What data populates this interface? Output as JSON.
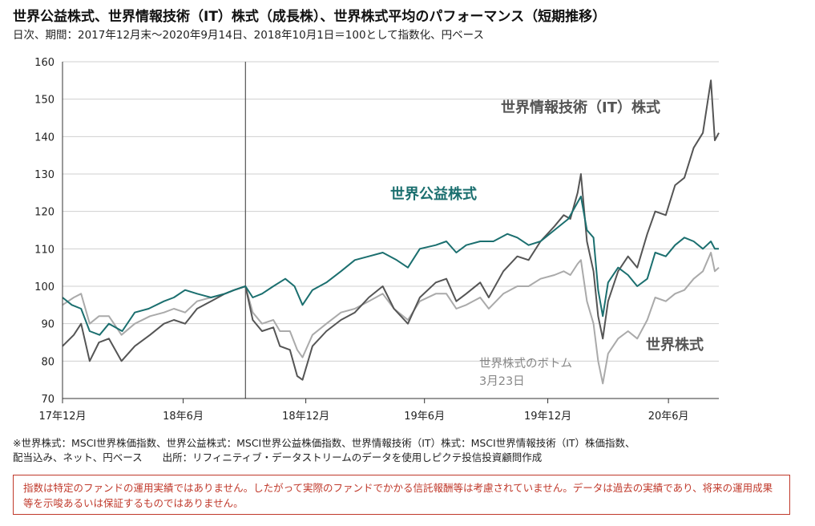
{
  "title": "世界公益株式、世界情報技術（IT）株式（成長株）、世界株式平均のパフォーマンス（短期推移）",
  "subtitle": "日次、期間：2017年12月末～2020年9月14日、2018年10月1日＝100として指数化、円ベース",
  "chart_data": {
    "type": "line",
    "ylim": [
      70,
      160
    ],
    "y_ticks": [
      "70",
      "80",
      "90",
      "100",
      "110",
      "120",
      "130",
      "140",
      "150",
      "160"
    ],
    "x_ticks": [
      "17年12月",
      "18年6月",
      "18年12月",
      "19年6月",
      "19年12月",
      "20年6月"
    ],
    "x_tick_dates": [
      "2017-12-29",
      "2018-06-29",
      "2018-12-31",
      "2019-06-28",
      "2019-12-31",
      "2020-06-30"
    ],
    "x_range": [
      "2017-12-29",
      "2020-09-14"
    ],
    "reference_line": "2018-10-01",
    "series": [
      {
        "name": "世界情報技術（IT）株式",
        "color": "#555555",
        "points": [
          [
            "2017-12-29",
            84
          ],
          [
            "2018-01-15",
            87
          ],
          [
            "2018-01-26",
            90
          ],
          [
            "2018-02-08",
            80
          ],
          [
            "2018-02-22",
            85
          ],
          [
            "2018-03-09",
            86
          ],
          [
            "2018-03-28",
            80
          ],
          [
            "2018-04-17",
            84
          ],
          [
            "2018-05-10",
            87
          ],
          [
            "2018-05-31",
            90
          ],
          [
            "2018-06-15",
            91
          ],
          [
            "2018-07-02",
            90
          ],
          [
            "2018-07-20",
            94
          ],
          [
            "2018-08-10",
            96
          ],
          [
            "2018-08-31",
            98
          ],
          [
            "2018-09-14",
            99
          ],
          [
            "2018-10-01",
            100
          ],
          [
            "2018-10-12",
            91
          ],
          [
            "2018-10-26",
            88
          ],
          [
            "2018-11-12",
            89
          ],
          [
            "2018-11-22",
            84
          ],
          [
            "2018-12-07",
            83
          ],
          [
            "2018-12-18",
            76
          ],
          [
            "2018-12-26",
            75
          ],
          [
            "2019-01-10",
            84
          ],
          [
            "2019-01-31",
            88
          ],
          [
            "2019-02-22",
            91
          ],
          [
            "2019-03-15",
            93
          ],
          [
            "2019-04-05",
            97
          ],
          [
            "2019-04-26",
            100
          ],
          [
            "2019-05-13",
            94
          ],
          [
            "2019-06-03",
            90
          ],
          [
            "2019-06-21",
            97
          ],
          [
            "2019-07-15",
            101
          ],
          [
            "2019-07-31",
            102
          ],
          [
            "2019-08-15",
            96
          ],
          [
            "2019-08-30",
            98
          ],
          [
            "2019-09-20",
            101
          ],
          [
            "2019-10-03",
            97
          ],
          [
            "2019-10-25",
            104
          ],
          [
            "2019-11-15",
            108
          ],
          [
            "2019-12-02",
            107
          ],
          [
            "2019-12-20",
            112
          ],
          [
            "2020-01-10",
            116
          ],
          [
            "2020-01-24",
            119
          ],
          [
            "2020-02-03",
            118
          ],
          [
            "2020-02-14",
            125
          ],
          [
            "2020-02-19",
            130
          ],
          [
            "2020-02-28",
            112
          ],
          [
            "2020-03-09",
            104
          ],
          [
            "2020-03-16",
            92
          ],
          [
            "2020-03-23",
            86
          ],
          [
            "2020-03-31",
            96
          ],
          [
            "2020-04-15",
            104
          ],
          [
            "2020-04-30",
            108
          ],
          [
            "2020-05-14",
            105
          ],
          [
            "2020-05-29",
            114
          ],
          [
            "2020-06-10",
            120
          ],
          [
            "2020-06-26",
            119
          ],
          [
            "2020-07-10",
            127
          ],
          [
            "2020-07-24",
            129
          ],
          [
            "2020-08-07",
            137
          ],
          [
            "2020-08-21",
            141
          ],
          [
            "2020-09-02",
            155
          ],
          [
            "2020-09-08",
            139
          ],
          [
            "2020-09-14",
            141
          ]
        ]
      },
      {
        "name": "世界公益株式",
        "color": "#1b6f6f",
        "points": [
          [
            "2017-12-29",
            97
          ],
          [
            "2018-01-12",
            95
          ],
          [
            "2018-01-26",
            94
          ],
          [
            "2018-02-08",
            88
          ],
          [
            "2018-02-23",
            87
          ],
          [
            "2018-03-09",
            90
          ],
          [
            "2018-03-29",
            88
          ],
          [
            "2018-04-17",
            93
          ],
          [
            "2018-05-08",
            94
          ],
          [
            "2018-05-31",
            96
          ],
          [
            "2018-06-15",
            97
          ],
          [
            "2018-07-02",
            99
          ],
          [
            "2018-07-20",
            98
          ],
          [
            "2018-08-10",
            97
          ],
          [
            "2018-08-31",
            98
          ],
          [
            "2018-09-14",
            99
          ],
          [
            "2018-10-01",
            100
          ],
          [
            "2018-10-12",
            97
          ],
          [
            "2018-10-26",
            98
          ],
          [
            "2018-11-12",
            100
          ],
          [
            "2018-11-30",
            102
          ],
          [
            "2018-12-14",
            100
          ],
          [
            "2018-12-26",
            95
          ],
          [
            "2019-01-10",
            99
          ],
          [
            "2019-01-31",
            101
          ],
          [
            "2019-02-22",
            104
          ],
          [
            "2019-03-15",
            107
          ],
          [
            "2019-04-05",
            108
          ],
          [
            "2019-04-26",
            109
          ],
          [
            "2019-05-17",
            107
          ],
          [
            "2019-06-03",
            105
          ],
          [
            "2019-06-21",
            110
          ],
          [
            "2019-07-15",
            111
          ],
          [
            "2019-07-31",
            112
          ],
          [
            "2019-08-15",
            109
          ],
          [
            "2019-08-30",
            111
          ],
          [
            "2019-09-20",
            112
          ],
          [
            "2019-10-10",
            112
          ],
          [
            "2019-10-31",
            114
          ],
          [
            "2019-11-15",
            113
          ],
          [
            "2019-12-02",
            111
          ],
          [
            "2019-12-20",
            112
          ],
          [
            "2020-01-10",
            115
          ],
          [
            "2020-01-31",
            118
          ],
          [
            "2020-02-19",
            124
          ],
          [
            "2020-02-28",
            115
          ],
          [
            "2020-03-09",
            113
          ],
          [
            "2020-03-16",
            99
          ],
          [
            "2020-03-23",
            92
          ],
          [
            "2020-03-31",
            101
          ],
          [
            "2020-04-15",
            105
          ],
          [
            "2020-04-30",
            103
          ],
          [
            "2020-05-14",
            100
          ],
          [
            "2020-05-29",
            102
          ],
          [
            "2020-06-10",
            109
          ],
          [
            "2020-06-26",
            108
          ],
          [
            "2020-07-10",
            111
          ],
          [
            "2020-07-24",
            113
          ],
          [
            "2020-08-07",
            112
          ],
          [
            "2020-08-21",
            110
          ],
          [
            "2020-09-02",
            112
          ],
          [
            "2020-09-08",
            110
          ],
          [
            "2020-09-14",
            110
          ]
        ]
      },
      {
        "name": "世界株式",
        "color": "#aaaaaa",
        "points": [
          [
            "2017-12-29",
            95
          ],
          [
            "2018-01-15",
            97
          ],
          [
            "2018-01-26",
            98
          ],
          [
            "2018-02-08",
            90
          ],
          [
            "2018-02-22",
            92
          ],
          [
            "2018-03-09",
            92
          ],
          [
            "2018-03-28",
            87
          ],
          [
            "2018-04-17",
            90
          ],
          [
            "2018-05-10",
            92
          ],
          [
            "2018-05-31",
            93
          ],
          [
            "2018-06-15",
            94
          ],
          [
            "2018-07-02",
            93
          ],
          [
            "2018-07-20",
            96
          ],
          [
            "2018-08-10",
            97
          ],
          [
            "2018-08-31",
            98
          ],
          [
            "2018-09-14",
            99
          ],
          [
            "2018-10-01",
            100
          ],
          [
            "2018-10-12",
            93
          ],
          [
            "2018-10-26",
            90
          ],
          [
            "2018-11-12",
            91
          ],
          [
            "2018-11-22",
            88
          ],
          [
            "2018-12-07",
            88
          ],
          [
            "2018-12-18",
            83
          ],
          [
            "2018-12-26",
            81
          ],
          [
            "2019-01-10",
            87
          ],
          [
            "2019-01-31",
            90
          ],
          [
            "2019-02-22",
            93
          ],
          [
            "2019-03-15",
            94
          ],
          [
            "2019-04-05",
            96
          ],
          [
            "2019-04-26",
            98
          ],
          [
            "2019-05-13",
            94
          ],
          [
            "2019-06-03",
            91
          ],
          [
            "2019-06-21",
            96
          ],
          [
            "2019-07-15",
            98
          ],
          [
            "2019-07-31",
            98
          ],
          [
            "2019-08-15",
            94
          ],
          [
            "2019-08-30",
            95
          ],
          [
            "2019-09-20",
            97
          ],
          [
            "2019-10-03",
            94
          ],
          [
            "2019-10-25",
            98
          ],
          [
            "2019-11-15",
            100
          ],
          [
            "2019-12-02",
            100
          ],
          [
            "2019-12-20",
            102
          ],
          [
            "2020-01-10",
            103
          ],
          [
            "2020-01-24",
            104
          ],
          [
            "2020-02-03",
            103
          ],
          [
            "2020-02-14",
            106
          ],
          [
            "2020-02-19",
            107
          ],
          [
            "2020-02-28",
            96
          ],
          [
            "2020-03-09",
            90
          ],
          [
            "2020-03-16",
            80
          ],
          [
            "2020-03-23",
            74
          ],
          [
            "2020-03-31",
            82
          ],
          [
            "2020-04-15",
            86
          ],
          [
            "2020-04-30",
            88
          ],
          [
            "2020-05-14",
            86
          ],
          [
            "2020-05-29",
            91
          ],
          [
            "2020-06-10",
            97
          ],
          [
            "2020-06-26",
            96
          ],
          [
            "2020-07-10",
            98
          ],
          [
            "2020-07-24",
            99
          ],
          [
            "2020-08-07",
            102
          ],
          [
            "2020-08-21",
            104
          ],
          [
            "2020-09-02",
            109
          ],
          [
            "2020-09-08",
            104
          ],
          [
            "2020-09-14",
            105
          ]
        ]
      }
    ],
    "annotations": [
      {
        "text": "世界情報技術（IT）株式",
        "color": "#555555"
      },
      {
        "text": "世界公益株式",
        "color": "#1b6f6f"
      },
      {
        "text": "世界株式",
        "color": "#555555"
      },
      {
        "text": "世界株式のボトム",
        "color": "#888888"
      },
      {
        "text": "3月23日",
        "color": "#888888"
      }
    ],
    "grid": "horizontal"
  },
  "footnote": {
    "line1": "※世界株式：MSCI世界株価指数、世界公益株式：MSCI世界公益株価指数、世界情報技術（IT）株式：MSCI世界情報技術（IT）株価指数、",
    "line2": "配当込み、ネット、円ベース　　出所：リフィニティブ・データストリームのデータを使用しピクテ投信投資顧問作成"
  },
  "disclaimer": "指数は特定のファンドの運用実績ではありません。したがって実際のファンドでかかる信託報酬等は考慮されていません。データは過去の実績であり、将来の運用成果等を示唆あるいは保証するものではありません。"
}
